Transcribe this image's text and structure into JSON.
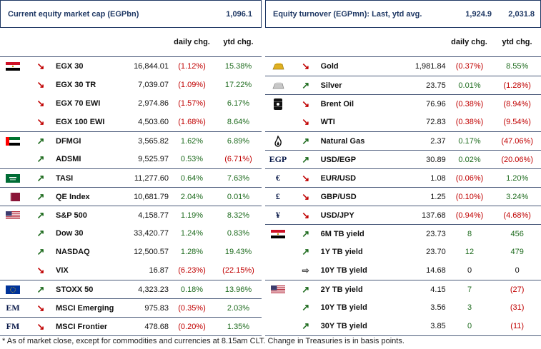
{
  "left": {
    "header": {
      "title": "Current equity market cap (EGPbn)",
      "value": "1,096.1"
    },
    "columns": {
      "daily": "daily chg.",
      "ytd": "ytd chg."
    },
    "rows": [
      {
        "icon": "egypt-flag-icon",
        "dir": "down",
        "name": "EGX 30",
        "value": "16,844.01",
        "daily": "(1.12%)",
        "ytd": "15.38%",
        "sep": false
      },
      {
        "icon": "",
        "dir": "down",
        "name": "EGX 30 TR",
        "value": "7,039.07",
        "daily": "(1.09%)",
        "ytd": "17.22%",
        "sep": false
      },
      {
        "icon": "",
        "dir": "down",
        "name": "EGX 70 EWI",
        "value": "2,974.86",
        "daily": "(1.57%)",
        "ytd": "6.17%",
        "sep": false
      },
      {
        "icon": "",
        "dir": "down",
        "name": "EGX 100 EWI",
        "value": "4,503.60",
        "daily": "(1.68%)",
        "ytd": "8.64%",
        "sep": false
      },
      {
        "icon": "uae-flag-icon",
        "dir": "up",
        "name": "DFMGI",
        "value": "3,565.82",
        "daily": "1.62%",
        "ytd": "6.89%",
        "sep": true
      },
      {
        "icon": "",
        "dir": "up",
        "name": "ADSMI",
        "value": "9,525.97",
        "daily": "0.53%",
        "ytd": "(6.71%)",
        "sep": false
      },
      {
        "icon": "saudi-flag-icon",
        "dir": "up",
        "name": "TASI",
        "value": "11,277.60",
        "daily": "0.64%",
        "ytd": "7.63%",
        "sep": true
      },
      {
        "icon": "qatar-flag-icon",
        "dir": "up",
        "name": "QE Index",
        "value": "10,681.79",
        "daily": "2.04%",
        "ytd": "0.01%",
        "sep": true
      },
      {
        "icon": "us-flag-icon",
        "dir": "up",
        "name": "S&P 500",
        "value": "4,158.77",
        "daily": "1.19%",
        "ytd": "8.32%",
        "sep": true
      },
      {
        "icon": "",
        "dir": "up",
        "name": "Dow 30",
        "value": "33,420.77",
        "daily": "1.24%",
        "ytd": "0.83%",
        "sep": false
      },
      {
        "icon": "",
        "dir": "up",
        "name": "NASDAQ",
        "value": "12,500.57",
        "daily": "1.28%",
        "ytd": "19.43%",
        "sep": false
      },
      {
        "icon": "",
        "dir": "down",
        "name": "VIX",
        "value": "16.87",
        "daily": "(6.23%)",
        "ytd": "(22.15%)",
        "sep": false
      },
      {
        "icon": "eu-flag-icon",
        "dir": "up",
        "name": "STOXX 50",
        "value": "4,323.23",
        "daily": "0.18%",
        "ytd": "13.96%",
        "sep": true
      },
      {
        "icon": "em-text-icon",
        "iconText": "EM",
        "dir": "down",
        "name": "MSCI Emerging",
        "value": "975.83",
        "daily": "(0.35%)",
        "ytd": "2.03%",
        "sep": true
      },
      {
        "icon": "fm-text-icon",
        "iconText": "FM",
        "dir": "down",
        "name": "MSCI Frontier",
        "value": "478.68",
        "daily": "(0.20%)",
        "ytd": "1.35%",
        "sep": true
      }
    ]
  },
  "right": {
    "header": {
      "title": "Equity turnover (EGPmn): Last, ytd avg.",
      "value1": "1,924.9",
      "value2": "2,031.8"
    },
    "columns": {
      "daily": "daily chg.",
      "ytd": "ytd chg."
    },
    "rows": [
      {
        "icon": "gold-bar-icon",
        "dir": "down",
        "name": "Gold",
        "value": "1,981.84",
        "daily": "(0.37%)",
        "ytd": "8.55%",
        "sep": false
      },
      {
        "icon": "silver-bar-icon",
        "dir": "up",
        "name": "Silver",
        "value": "23.75",
        "daily": "0.01%",
        "ytd": "(1.28%)",
        "sep": true
      },
      {
        "icon": "oil-barrel-icon",
        "dir": "down",
        "name": "Brent Oil",
        "value": "76.96",
        "daily": "(0.38%)",
        "ytd": "(8.94%)",
        "sep": true
      },
      {
        "icon": "",
        "dir": "down",
        "name": "WTI",
        "value": "72.83",
        "daily": "(0.38%)",
        "ytd": "(9.54%)",
        "sep": false
      },
      {
        "icon": "flame-icon",
        "dir": "up",
        "name": "Natural Gas",
        "value": "2.37",
        "daily": "0.17%",
        "ytd": "(47.06%)",
        "sep": true
      },
      {
        "icon": "egp-text-icon",
        "iconText": "EGP",
        "dir": "up",
        "name": "USD/EGP",
        "value": "30.89",
        "daily": "0.02%",
        "ytd": "(20.06%)",
        "sep": true
      },
      {
        "icon": "euro-icon",
        "iconText": "€",
        "dir": "down",
        "name": "EUR/USD",
        "value": "1.08",
        "daily": "(0.06%)",
        "ytd": "1.20%",
        "sep": true
      },
      {
        "icon": "pound-icon",
        "iconText": "£",
        "dir": "down",
        "name": "GBP/USD",
        "value": "1.25",
        "daily": "(0.10%)",
        "ytd": "3.24%",
        "sep": true
      },
      {
        "icon": "yen-icon",
        "iconText": "¥",
        "dir": "down",
        "name": "USD/JPY",
        "value": "137.68",
        "daily": "(0.94%)",
        "ytd": "(4.68%)",
        "sep": true
      },
      {
        "icon": "egypt-flag-icon",
        "dir": "up",
        "name": "6M TB yield",
        "value": "23.73",
        "daily": "8",
        "ytd": "456",
        "sep": true,
        "bp": true
      },
      {
        "icon": "",
        "dir": "up",
        "name": "1Y TB yield",
        "value": "23.70",
        "daily": "12",
        "ytd": "479",
        "sep": false,
        "bp": true
      },
      {
        "icon": "",
        "dir": "flat",
        "name": "10Y TB yield",
        "value": "14.68",
        "daily": "0",
        "ytd": "0",
        "sep": false,
        "bp": true
      },
      {
        "icon": "us-flag-icon",
        "dir": "up",
        "name": "2Y TB yield",
        "value": "4.15",
        "daily": "7",
        "ytd": "(27)",
        "sep": true,
        "bp": true
      },
      {
        "icon": "",
        "dir": "up",
        "name": "10Y TB yield",
        "value": "3.56",
        "daily": "3",
        "ytd": "(31)",
        "sep": false,
        "bp": true
      },
      {
        "icon": "",
        "dir": "up",
        "name": "30Y TB yield",
        "value": "3.85",
        "daily": "0",
        "ytd": "(11)",
        "sep": false,
        "bp": true
      }
    ]
  },
  "footnote": "* As of market close, except for commodities and currencies at 8.15am CLT. Change in Treasuries is in basis points.",
  "colors": {
    "positive": "#1e6b1e",
    "negative": "#c00000",
    "border": "#1f3864"
  }
}
